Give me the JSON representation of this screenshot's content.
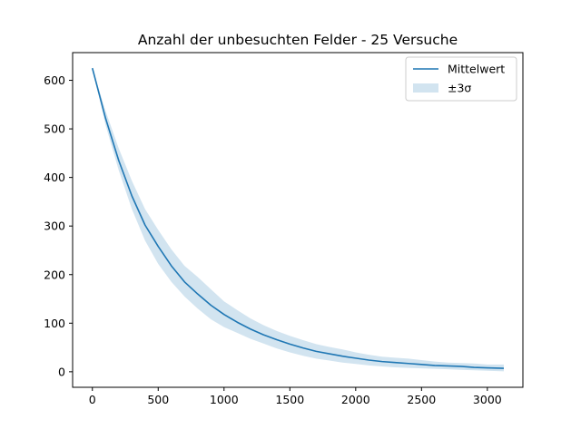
{
  "chart_data": {
    "type": "line",
    "title": "Anzahl der unbesuchten Felder - 25 Versuche",
    "xlabel": "",
    "ylabel": "",
    "xlim": [
      -150,
      3270
    ],
    "ylim": [
      -32,
      657
    ],
    "xticks": [
      0,
      500,
      1000,
      1500,
      2000,
      2500,
      3000
    ],
    "yticks": [
      0,
      100,
      200,
      300,
      400,
      500,
      600
    ],
    "grid": false,
    "legend_position": "upper right",
    "series": [
      {
        "name": "Mittelwert",
        "kind": "line",
        "color": "#1f77b4",
        "x": [
          0,
          100,
          200,
          300,
          400,
          500,
          600,
          700,
          800,
          900,
          1000,
          1100,
          1200,
          1300,
          1400,
          1500,
          1600,
          1700,
          1800,
          1900,
          2000,
          2100,
          2200,
          2300,
          2400,
          2500,
          2600,
          2700,
          2800,
          2900,
          3000,
          3125
        ],
        "y": [
          625,
          522,
          435,
          362,
          302,
          258,
          218,
          185,
          160,
          137,
          118,
          102,
          88,
          76,
          66,
          57,
          49,
          42,
          37,
          32,
          28,
          24,
          21,
          19,
          17,
          15,
          13,
          12,
          11,
          9,
          8,
          7
        ]
      },
      {
        "name": "±3σ",
        "kind": "band",
        "color": "#1f77b4",
        "alpha": 0.2,
        "x": [
          0,
          100,
          200,
          300,
          400,
          500,
          600,
          700,
          800,
          900,
          1000,
          1100,
          1200,
          1300,
          1400,
          1500,
          1600,
          1700,
          1800,
          1900,
          2000,
          2100,
          2200,
          2300,
          2400,
          2500,
          2600,
          2700,
          2800,
          2900,
          3000,
          3125
        ],
        "lower": [
          625,
          508,
          415,
          335,
          270,
          222,
          185,
          155,
          130,
          108,
          92,
          80,
          68,
          58,
          48,
          40,
          33,
          27,
          23,
          19,
          16,
          13,
          11,
          9,
          8,
          7,
          6,
          5,
          4,
          3,
          2,
          1
        ],
        "upper": [
          625,
          537,
          460,
          393,
          335,
          292,
          252,
          218,
          195,
          170,
          145,
          127,
          110,
          96,
          84,
          74,
          65,
          57,
          51,
          46,
          40,
          35,
          31,
          29,
          27,
          24,
          21,
          19,
          18,
          17,
          15,
          15
        ]
      }
    ]
  }
}
